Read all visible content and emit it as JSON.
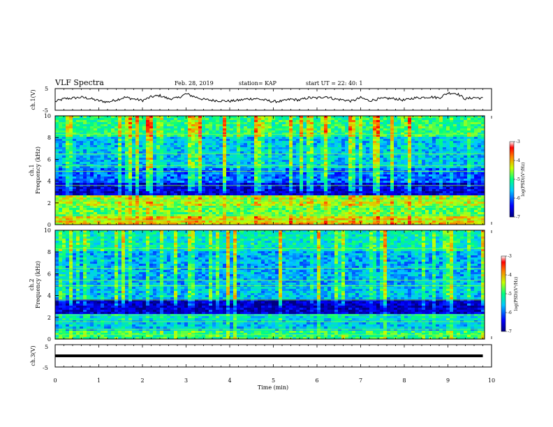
{
  "header": {
    "title": "VLF Spectra",
    "date": "Feb. 28, 2019",
    "station": "station= KAP",
    "start": "start  UT =   22: 40: 1"
  },
  "chart_data": [
    {
      "type": "line",
      "panel": "ch1-voltage",
      "ylabel": "ch.1(V)",
      "yticks": [
        "5",
        "-5"
      ],
      "ylim": [
        -5,
        5
      ],
      "xlim": [
        0,
        10
      ],
      "series": [
        {
          "x": [
            0.0,
            0.2,
            0.4,
            0.6,
            0.8,
            1.0,
            1.2,
            1.4,
            1.6,
            1.8,
            2.0,
            2.2,
            2.4,
            2.6,
            2.8,
            3.0,
            3.2,
            3.4,
            3.6,
            3.8,
            4.0,
            4.2,
            4.4,
            4.6,
            4.8,
            5.0,
            5.2,
            5.4,
            5.6,
            5.8,
            6.0,
            6.2,
            6.4,
            6.6,
            6.8,
            7.0,
            7.2,
            7.4,
            7.6,
            7.8,
            8.0,
            8.2,
            8.4,
            8.6,
            8.8,
            9.0,
            9.2,
            9.4,
            9.6,
            9.8
          ],
          "values": [
            -1.0,
            0.3,
            0.6,
            1.0,
            0.4,
            -0.6,
            -1.2,
            -0.2,
            1.0,
            0.2,
            -0.5,
            1.2,
            1.8,
            0.3,
            0.6,
            2.6,
            1.2,
            0.0,
            -0.4,
            -0.6,
            -0.8,
            -0.4,
            0.2,
            0.4,
            -0.3,
            -1.0,
            -0.8,
            0.1,
            -0.3,
            0.8,
            0.6,
            1.4,
            0.2,
            -0.2,
            -0.8,
            0.8,
            -0.6,
            0.2,
            0.5,
            0.3,
            -0.4,
            0.6,
            0.9,
            1.2,
            0.7,
            3.0,
            2.8,
            0.2,
            0.9,
            0.5
          ]
        }
      ]
    },
    {
      "type": "heatmap",
      "panel": "ch1-spectrogram",
      "ylabel": "ch.1\nFrequency (kHz)",
      "ylabel_lines": [
        "ch.1",
        "Frequency (kHz)"
      ],
      "yticks": [
        "0",
        "2",
        "4",
        "6",
        "8",
        "10"
      ],
      "ylim": [
        0,
        10
      ],
      "xlim": [
        0,
        10
      ],
      "colorbar": {
        "label": "log(PSD)(V²/Hz)",
        "ticks": [
          "-3",
          "-4",
          "-5",
          "-6",
          "-7"
        ],
        "range": [
          -7,
          -3
        ]
      },
      "bands_khz": [
        {
          "from": 0.0,
          "to": 0.8,
          "level": -4.2
        },
        {
          "from": 0.8,
          "to": 1.8,
          "level": -4.8
        },
        {
          "from": 1.8,
          "to": 2.6,
          "level": -4.5
        },
        {
          "from": 2.6,
          "to": 3.8,
          "level": -6.6
        },
        {
          "from": 3.8,
          "to": 5.2,
          "level": -6.0
        },
        {
          "from": 5.2,
          "to": 8.0,
          "level": -5.6
        },
        {
          "from": 8.0,
          "to": 10.0,
          "level": -5.0
        }
      ]
    },
    {
      "type": "heatmap",
      "panel": "ch2-spectrogram",
      "ylabel": "ch.2\nFrequency (kHz)",
      "ylabel_lines": [
        "ch.2",
        "Frequency (kHz)"
      ],
      "yticks": [
        "0",
        "2",
        "4",
        "6",
        "8",
        "10"
      ],
      "ylim": [
        0,
        10
      ],
      "xlim": [
        0,
        10
      ],
      "colorbar": {
        "label": "log(PSD)(V²/Hz)",
        "ticks": [
          "-3",
          "-4",
          "-5",
          "-6",
          "-7"
        ],
        "range": [
          -7,
          -3
        ]
      },
      "bands_khz": [
        {
          "from": 0.0,
          "to": 0.8,
          "level": -5.0
        },
        {
          "from": 0.8,
          "to": 1.8,
          "level": -5.6
        },
        {
          "from": 1.8,
          "to": 2.4,
          "level": -5.4
        },
        {
          "from": 2.4,
          "to": 3.6,
          "level": -6.7
        },
        {
          "from": 3.6,
          "to": 5.0,
          "level": -5.6
        },
        {
          "from": 5.0,
          "to": 8.0,
          "level": -5.7
        },
        {
          "from": 8.0,
          "to": 10.0,
          "level": -5.3
        }
      ]
    },
    {
      "type": "line",
      "panel": "ch3-voltage",
      "ylabel": "ch.3(V)",
      "yticks": [
        "5",
        "-5"
      ],
      "ylim": [
        -5,
        5
      ],
      "xlim": [
        0,
        10
      ],
      "series": [
        {
          "x": [
            0,
            9.8
          ],
          "values": [
            0,
            0
          ]
        }
      ]
    }
  ],
  "xaxis": {
    "label": "Time (min)",
    "ticks": [
      "0",
      "1",
      "2",
      "3",
      "4",
      "5",
      "6",
      "7",
      "8",
      "9",
      "10"
    ]
  }
}
